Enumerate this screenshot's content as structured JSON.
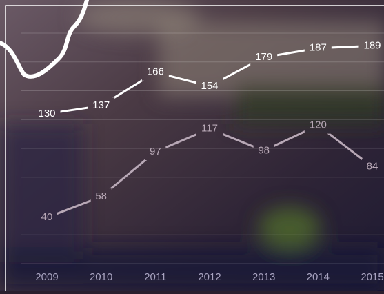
{
  "chart_data": {
    "type": "line",
    "categories": [
      "2009",
      "2010",
      "2011",
      "2012",
      "2013",
      "2014",
      "2015"
    ],
    "series": [
      {
        "color": "#ffffff",
        "values": [
          130,
          137,
          166,
          154,
          179,
          187,
          189
        ]
      },
      {
        "color": "#b8a8b6",
        "values": [
          40,
          58,
          97,
          117,
          98,
          120,
          84
        ]
      }
    ],
    "ylim": [
      0,
      200
    ],
    "yticks": [
      0,
      25,
      50,
      75,
      100,
      125,
      150,
      175,
      200
    ],
    "grid": true
  }
}
